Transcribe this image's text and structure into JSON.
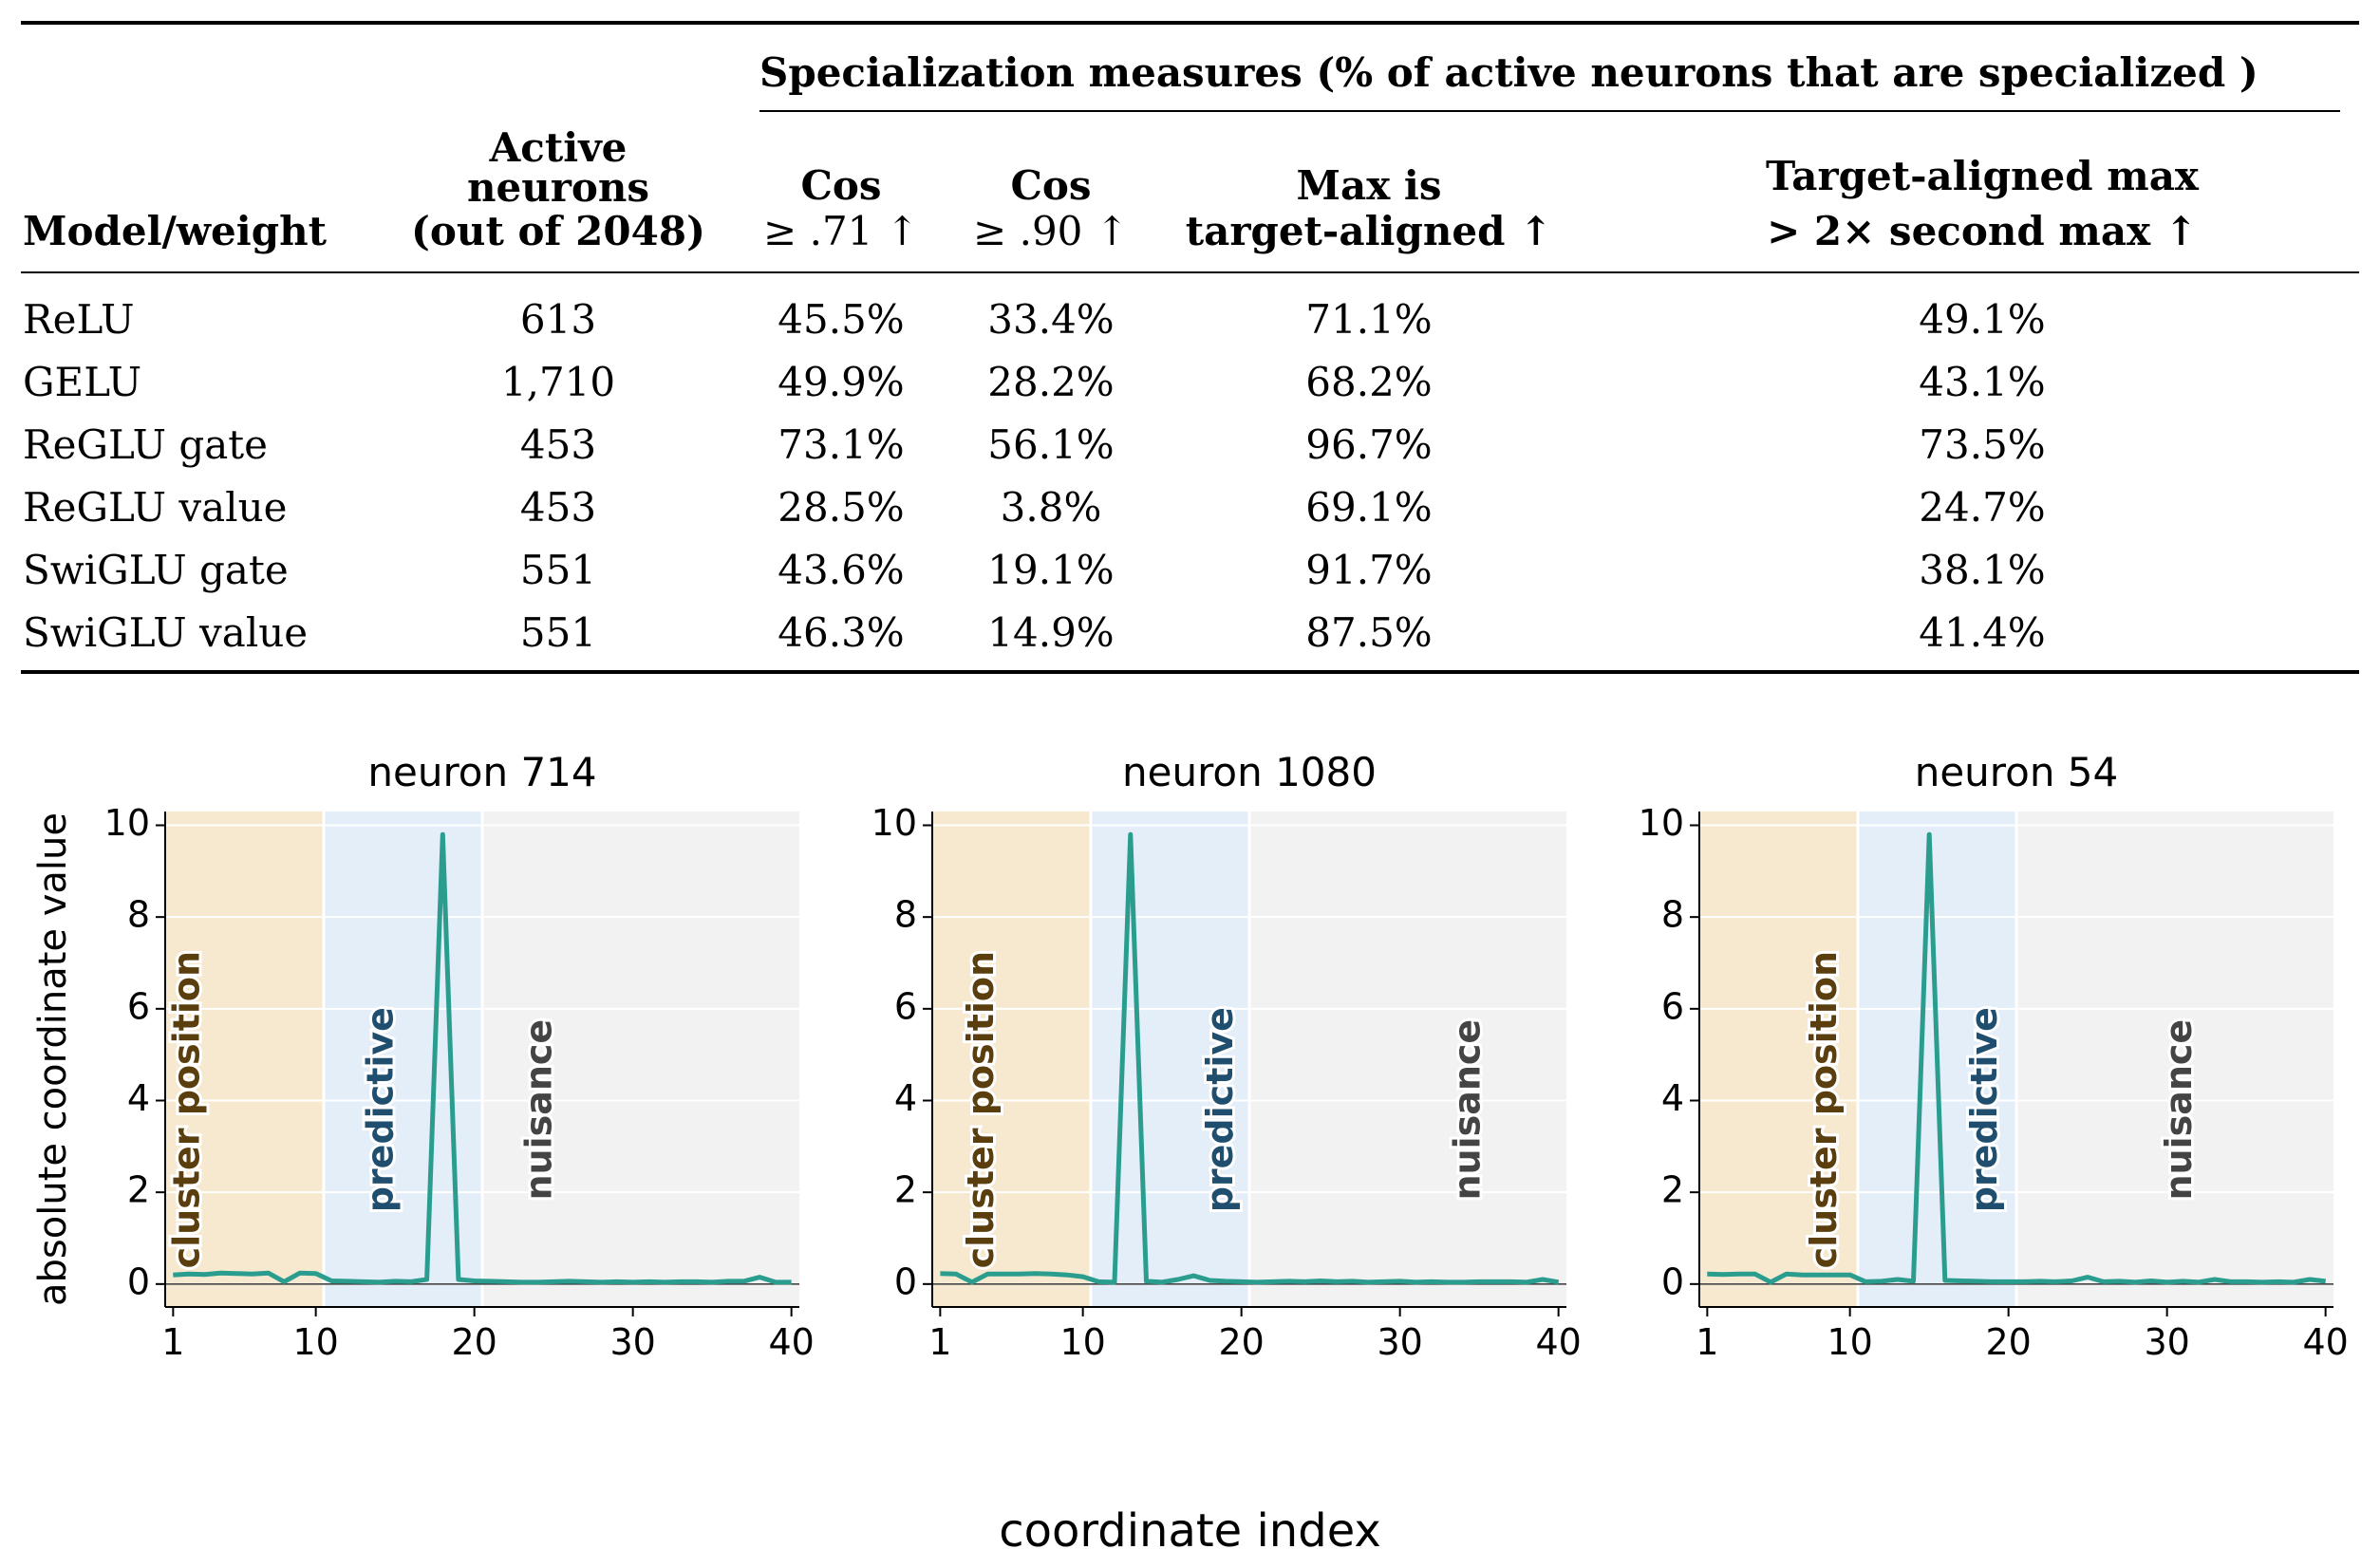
{
  "table": {
    "group_header": "Specialization measures (% of active neurons that are specialized )",
    "columns": [
      {
        "lines": [
          "",
          "",
          "Model/weight"
        ]
      },
      {
        "lines": [
          "Active",
          "neurons",
          "(out of 2048)"
        ]
      },
      {
        "lines": [
          "",
          "Cos",
          "≥ .71 ↑"
        ]
      },
      {
        "lines": [
          "",
          "Cos",
          "≥ .90 ↑"
        ]
      },
      {
        "lines": [
          "",
          "Max is",
          "target-aligned ↑"
        ]
      },
      {
        "lines": [
          "",
          "Target-aligned max",
          "> 2× second max ↑"
        ]
      }
    ],
    "rows": [
      [
        "ReLU",
        "613",
        "45.5%",
        "33.4%",
        "71.1%",
        "49.1%"
      ],
      [
        "GELU",
        "1,710",
        "49.9%",
        "28.2%",
        "68.2%",
        "43.1%"
      ],
      [
        "ReGLU gate",
        "453",
        "73.1%",
        "56.1%",
        "96.7%",
        "73.5%"
      ],
      [
        "ReGLU value",
        "453",
        "28.5%",
        "3.8%",
        "69.1%",
        "24.7%"
      ],
      [
        "SwiGLU gate",
        "551",
        "43.6%",
        "19.1%",
        "91.7%",
        "38.1%"
      ],
      [
        "SwiGLU value",
        "551",
        "46.3%",
        "14.9%",
        "87.5%",
        "41.4%"
      ]
    ]
  },
  "chart_data": [
    {
      "type": "line",
      "title": "neuron 714",
      "ylabel": "absolute coordinate value",
      "xlim": [
        0.5,
        40.5
      ],
      "ylim": [
        -0.5,
        10.3
      ],
      "xticks": [
        1,
        10,
        20,
        30,
        40
      ],
      "yticks": [
        0,
        2,
        4,
        6,
        8,
        10
      ],
      "regions": [
        {
          "label": "cluster position",
          "from": 0.5,
          "to": 10.5,
          "color": "#f7e9cf",
          "text_color": "#5a3e0d",
          "label_x": 2.0
        },
        {
          "label": "predictive",
          "from": 10.5,
          "to": 20.5,
          "color": "#e3eef8",
          "text_color": "#1f4e6e",
          "label_x": 14.2
        },
        {
          "label": "nuisance",
          "from": 20.5,
          "to": 40.5,
          "color": "#f2f2f2",
          "text_color": "#444444",
          "label_x": 24.2
        }
      ],
      "color": "#2a9d8f",
      "x": [
        1,
        2,
        3,
        4,
        5,
        6,
        7,
        8,
        9,
        10,
        11,
        12,
        13,
        14,
        15,
        16,
        17,
        18,
        19,
        20,
        21,
        22,
        23,
        24,
        25,
        26,
        27,
        28,
        29,
        30,
        31,
        32,
        33,
        34,
        35,
        36,
        37,
        38,
        39,
        40
      ],
      "values": [
        0.2,
        0.22,
        0.21,
        0.24,
        0.23,
        0.22,
        0.24,
        0.05,
        0.24,
        0.23,
        0.07,
        0.06,
        0.05,
        0.04,
        0.06,
        0.05,
        0.1,
        9.8,
        0.1,
        0.07,
        0.06,
        0.05,
        0.04,
        0.04,
        0.05,
        0.06,
        0.05,
        0.04,
        0.05,
        0.04,
        0.05,
        0.04,
        0.05,
        0.05,
        0.04,
        0.06,
        0.06,
        0.15,
        0.04,
        0.04
      ]
    },
    {
      "type": "line",
      "title": "neuron 1080",
      "ylabel": "",
      "xlim": [
        0.5,
        40.5
      ],
      "ylim": [
        -0.5,
        10.3
      ],
      "xticks": [
        1,
        10,
        20,
        30,
        40
      ],
      "yticks": [
        0,
        2,
        4,
        6,
        8,
        10
      ],
      "regions": [
        {
          "label": "cluster position",
          "from": 0.5,
          "to": 10.5,
          "color": "#f7e9cf",
          "text_color": "#5a3e0d",
          "label_x": 3.7
        },
        {
          "label": "predictive",
          "from": 10.5,
          "to": 20.5,
          "color": "#e3eef8",
          "text_color": "#1f4e6e",
          "label_x": 18.8
        },
        {
          "label": "nuisance",
          "from": 20.5,
          "to": 40.5,
          "color": "#f2f2f2",
          "text_color": "#444444",
          "label_x": 34.4
        }
      ],
      "color": "#2a9d8f",
      "x": [
        1,
        2,
        3,
        4,
        5,
        6,
        7,
        8,
        9,
        10,
        11,
        12,
        13,
        14,
        15,
        16,
        17,
        18,
        19,
        20,
        21,
        22,
        23,
        24,
        25,
        26,
        27,
        28,
        29,
        30,
        31,
        32,
        33,
        34,
        35,
        36,
        37,
        38,
        39,
        40
      ],
      "values": [
        0.23,
        0.22,
        0.04,
        0.22,
        0.22,
        0.22,
        0.23,
        0.22,
        0.2,
        0.16,
        0.05,
        0.04,
        9.8,
        0.06,
        0.04,
        0.1,
        0.18,
        0.08,
        0.06,
        0.05,
        0.04,
        0.05,
        0.06,
        0.05,
        0.07,
        0.05,
        0.06,
        0.04,
        0.05,
        0.06,
        0.04,
        0.05,
        0.04,
        0.04,
        0.05,
        0.05,
        0.05,
        0.04,
        0.1,
        0.04
      ]
    },
    {
      "type": "line",
      "title": "neuron 54",
      "ylabel": "",
      "xlim": [
        0.5,
        40.5
      ],
      "ylim": [
        -0.5,
        10.3
      ],
      "xticks": [
        1,
        10,
        20,
        30,
        40
      ],
      "yticks": [
        0,
        2,
        4,
        6,
        8,
        10
      ],
      "regions": [
        {
          "label": "cluster position",
          "from": 0.5,
          "to": 10.5,
          "color": "#f7e9cf",
          "text_color": "#5a3e0d",
          "label_x": 8.5
        },
        {
          "label": "predictive",
          "from": 10.5,
          "to": 20.5,
          "color": "#e3eef8",
          "text_color": "#1f4e6e",
          "label_x": 18.6
        },
        {
          "label": "nuisance",
          "from": 20.5,
          "to": 40.5,
          "color": "#f2f2f2",
          "text_color": "#444444",
          "label_x": 30.9
        }
      ],
      "color": "#2a9d8f",
      "x": [
        1,
        2,
        3,
        4,
        5,
        6,
        7,
        8,
        9,
        10,
        11,
        12,
        13,
        14,
        15,
        16,
        17,
        18,
        19,
        20,
        21,
        22,
        23,
        24,
        25,
        26,
        27,
        28,
        29,
        30,
        31,
        32,
        33,
        34,
        35,
        36,
        37,
        38,
        39,
        40
      ],
      "values": [
        0.22,
        0.21,
        0.22,
        0.22,
        0.04,
        0.22,
        0.2,
        0.2,
        0.2,
        0.2,
        0.05,
        0.06,
        0.1,
        0.06,
        9.8,
        0.08,
        0.07,
        0.06,
        0.05,
        0.05,
        0.05,
        0.06,
        0.05,
        0.07,
        0.15,
        0.05,
        0.06,
        0.04,
        0.07,
        0.04,
        0.06,
        0.04,
        0.1,
        0.05,
        0.05,
        0.04,
        0.05,
        0.04,
        0.1,
        0.06
      ]
    }
  ],
  "shared_xlabel": "coordinate index"
}
